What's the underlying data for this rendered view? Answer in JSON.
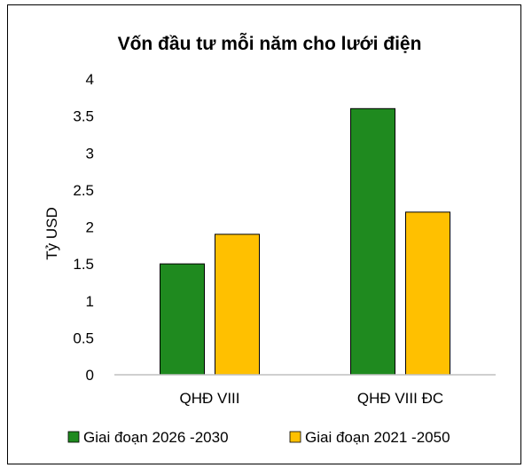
{
  "chart_data": {
    "type": "bar",
    "title": "Vốn đầu tư mỗi năm cho lưới điện",
    "ylabel": "Tỷ USD",
    "xlabel": "",
    "categories": [
      "QHĐ VIII",
      "QHĐ VIII ĐC"
    ],
    "ylim": [
      0,
      4
    ],
    "yticks": [
      "0",
      "0.5",
      "1",
      "1.5",
      "2",
      "2.5",
      "3",
      "3.5",
      "4"
    ],
    "grid": false,
    "legend_position": "bottom",
    "series": [
      {
        "name": "Giai đoạn 2026 -2030",
        "values": [
          1.5,
          3.6
        ],
        "color": "#1f8a1f"
      },
      {
        "name": "Giai đoạn 2021 -2050",
        "values": [
          1.9,
          2.2
        ],
        "color": "#ffc000"
      }
    ]
  }
}
